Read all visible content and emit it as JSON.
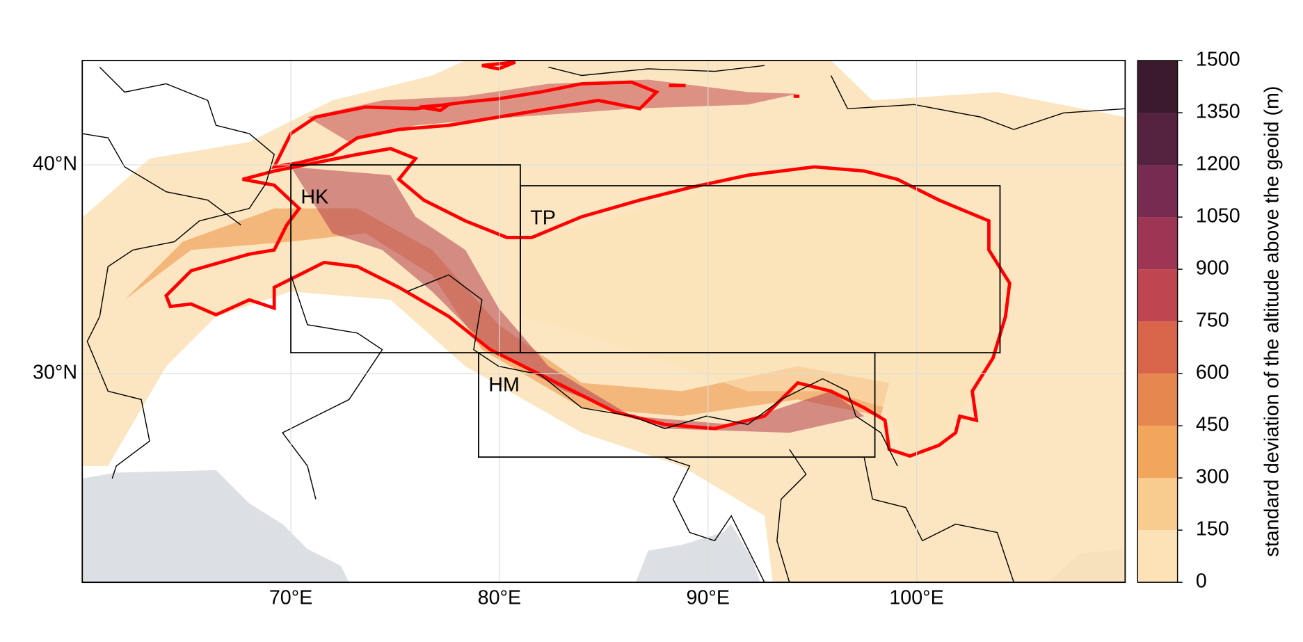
{
  "map": {
    "xlim": [
      60,
      110
    ],
    "ylim": [
      20,
      45
    ],
    "xticks": [
      {
        "value": 70,
        "label": "70°E"
      },
      {
        "value": 80,
        "label": "80°E"
      },
      {
        "value": 90,
        "label": "90°E"
      },
      {
        "value": 100,
        "label": "100°E"
      }
    ],
    "yticks": [
      {
        "value": 30,
        "label": "30°N"
      },
      {
        "value": 40,
        "label": "40°N"
      }
    ],
    "grid": true,
    "regions": [
      {
        "name": "HK",
        "lon": [
          70,
          81
        ],
        "lat": [
          31,
          40
        ]
      },
      {
        "name": "TP",
        "lon": [
          81,
          104
        ],
        "lat": [
          31,
          39
        ]
      },
      {
        "name": "HM",
        "lon": [
          79,
          98
        ],
        "lat": [
          26,
          31
        ]
      }
    ],
    "colorbar": {
      "label": "standard deviation of the altitude above the geoid (m)",
      "ticks": [
        0,
        150,
        300,
        450,
        600,
        750,
        900,
        1050,
        1200,
        1350,
        1500
      ],
      "colors": [
        "#ffffff",
        "#fce2b6",
        "#f8cb8f",
        "#f2a65c",
        "#e5874f",
        "#d8654a",
        "#bf4650",
        "#9d3655",
        "#772b50",
        "#55223f",
        "#3a1a2c"
      ]
    }
  }
}
